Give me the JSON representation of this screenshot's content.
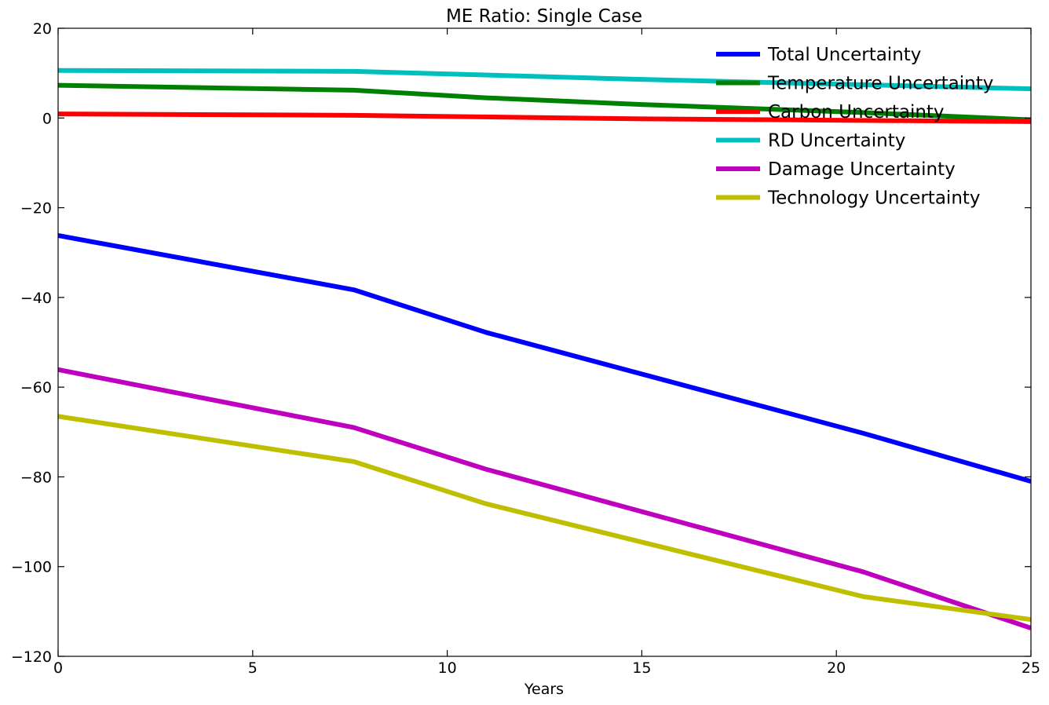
{
  "chart_data": {
    "type": "line",
    "title": "ME Ratio: Single Case",
    "xlabel": "Years",
    "ylabel": "",
    "xlim": [
      0,
      25
    ],
    "ylim": [
      -120,
      20
    ],
    "xticks": [
      0,
      5,
      10,
      15,
      20,
      25
    ],
    "yticks": [
      -120,
      -100,
      -80,
      -60,
      -40,
      -20,
      0,
      20
    ],
    "xtick_labels": [
      "0",
      "5",
      "10",
      "15",
      "20",
      "25"
    ],
    "ytick_labels": [
      "−120",
      "−100",
      "−80",
      "−60",
      "−40",
      "−20",
      "0",
      "20"
    ],
    "grid": false,
    "legend_position": "top-right",
    "series": [
      {
        "name": "Total Uncertainty",
        "color": "#0000ff",
        "x": [
          0,
          7.6,
          11,
          20.7,
          25
        ],
        "y": [
          -26.2,
          -38.3,
          -47.8,
          -70.3,
          -81.0
        ]
      },
      {
        "name": "Temperature Uncertainty",
        "color": "#008000",
        "x": [
          0,
          7.6,
          11,
          15,
          20.7,
          25
        ],
        "y": [
          7.3,
          6.2,
          4.5,
          3.0,
          1.2,
          -0.4
        ]
      },
      {
        "name": "Carbon Uncertainty",
        "color": "#ff0000",
        "x": [
          0,
          7.6,
          15,
          25
        ],
        "y": [
          0.9,
          0.6,
          -0.2,
          -0.8
        ]
      },
      {
        "name": "RD Uncertainty",
        "color": "#00bfbf",
        "x": [
          0,
          7.6,
          15,
          25
        ],
        "y": [
          10.6,
          10.4,
          8.6,
          6.5
        ]
      },
      {
        "name": "Damage Uncertainty",
        "color": "#bf00bf",
        "x": [
          0,
          7.6,
          11,
          20.7,
          25
        ],
        "y": [
          -56.1,
          -69.0,
          -78.3,
          -101.2,
          -113.7
        ]
      },
      {
        "name": "Technology Uncertainty",
        "color": "#bfbf00",
        "x": [
          0,
          7.6,
          11,
          20.7,
          25
        ],
        "y": [
          -66.5,
          -76.6,
          -86.0,
          -106.7,
          -111.8
        ]
      }
    ]
  }
}
